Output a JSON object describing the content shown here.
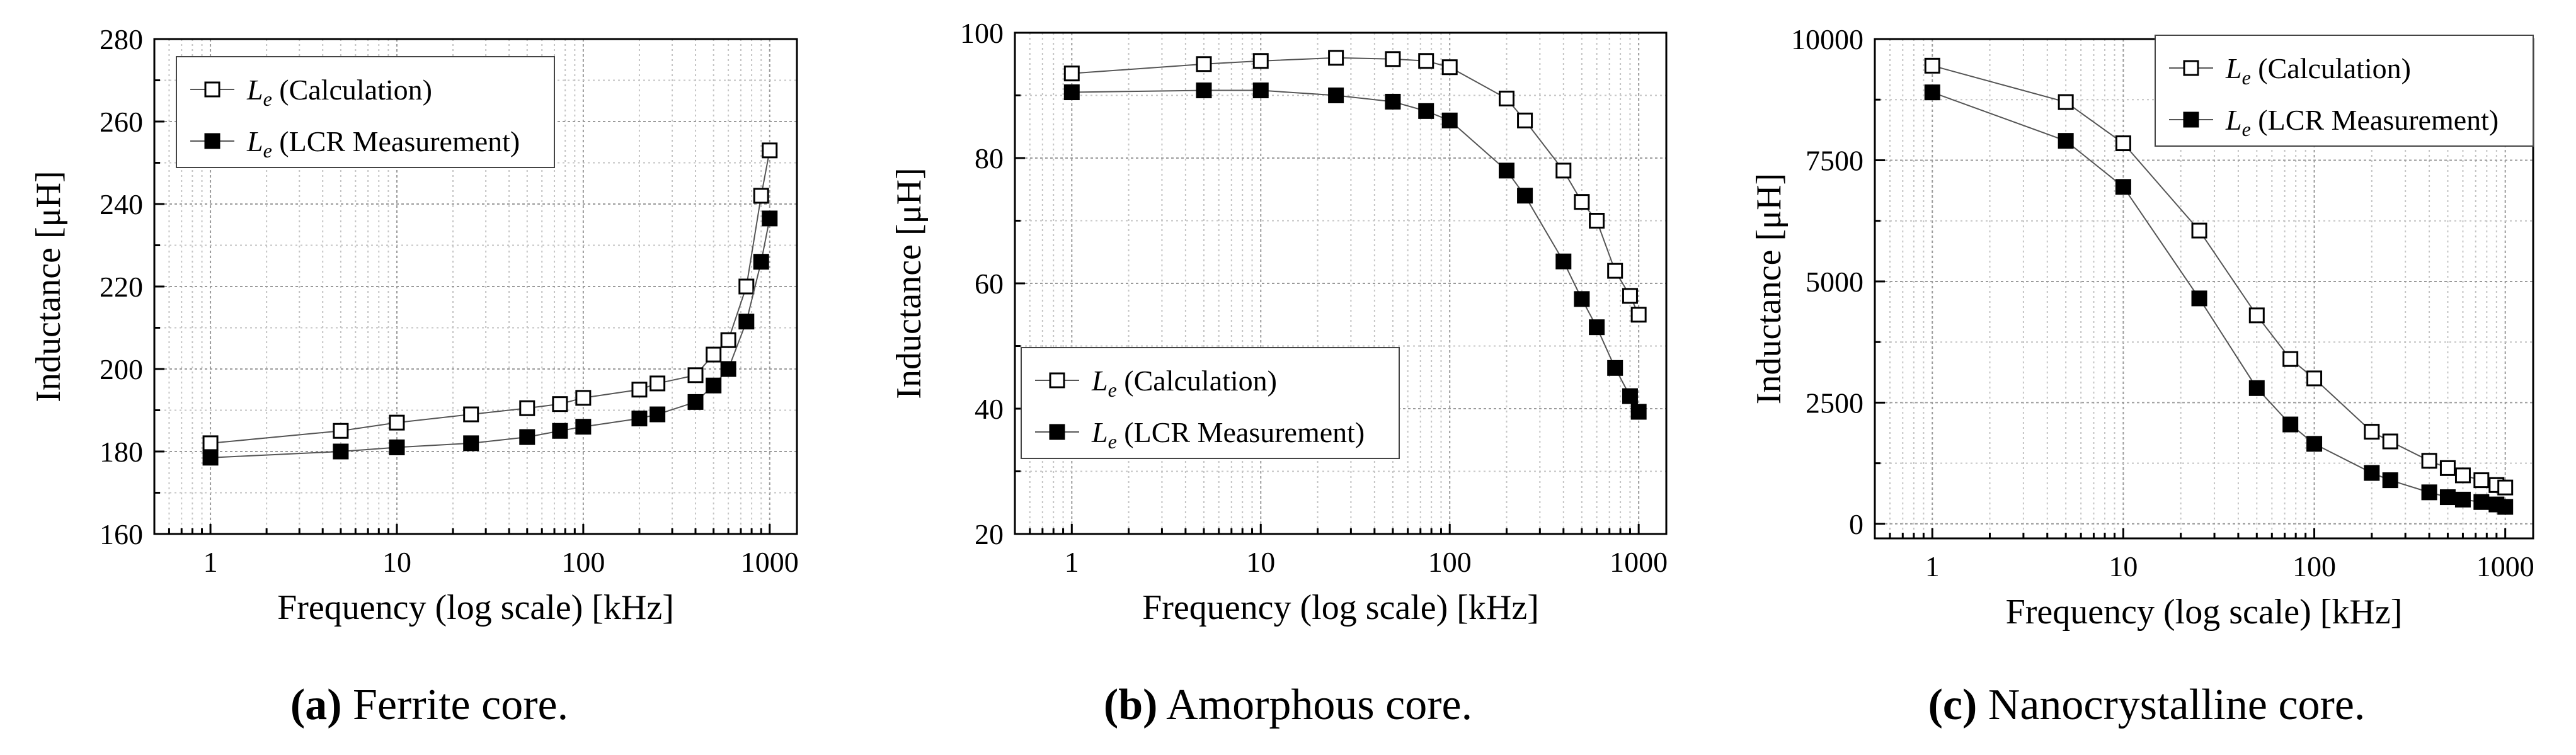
{
  "chart_data": [
    {
      "type": "line",
      "panel": "a",
      "caption_tag": "a",
      "caption_text": "Ferrite core.",
      "xlabel": "Frequency (log scale) [kHz]",
      "ylabel": "Inductance [μH]",
      "xscale": "log",
      "xlim": [
        0.5,
        1400
      ],
      "ylim": [
        160,
        280
      ],
      "yticks": [
        160,
        180,
        200,
        220,
        240,
        260,
        280
      ],
      "ytick_labels": [
        "160",
        "180",
        "200",
        "220",
        "240",
        "260",
        "280"
      ],
      "xticks": [
        1,
        10,
        100,
        1000
      ],
      "xtick_labels": [
        "1",
        "10",
        "100",
        "1000"
      ],
      "grid": true,
      "legend_position": "top-left",
      "x": [
        1,
        5,
        10,
        25,
        50,
        75,
        100,
        200,
        250,
        400,
        500,
        600,
        750,
        900,
        1000
      ],
      "series": [
        {
          "name": "L_e (Calculation)",
          "legend_sub": "e",
          "legend_text": "(Calculation)",
          "marker": "open-square",
          "values": [
            182,
            185,
            187,
            189,
            190.5,
            191.5,
            193,
            195,
            196.5,
            198.5,
            203.5,
            207,
            220,
            242,
            253
          ]
        },
        {
          "name": "L_e (LCR Measurement)",
          "legend_sub": "e",
          "legend_text": "(LCR Measurement)",
          "marker": "filled-square",
          "values": [
            178.5,
            180,
            181,
            182,
            183.5,
            185,
            186,
            188,
            189,
            192,
            196,
            200,
            211.5,
            226,
            236.5
          ]
        }
      ]
    },
    {
      "type": "line",
      "panel": "b",
      "caption_tag": "b",
      "caption_text": "Amorphous core.",
      "xlabel": "Frequency (log scale) [kHz]",
      "ylabel": "Inductance [μH]",
      "xscale": "log",
      "xlim": [
        0.5,
        1400
      ],
      "ylim": [
        20,
        100
      ],
      "yticks": [
        20,
        40,
        60,
        80,
        100
      ],
      "ytick_labels": [
        "20",
        "40",
        "60",
        "80",
        "100"
      ],
      "xticks": [
        1,
        10,
        100,
        1000
      ],
      "xtick_labels": [
        "1",
        "10",
        "100",
        "1000"
      ],
      "grid": true,
      "legend_position": "bottom-left",
      "x": [
        1,
        5,
        10,
        25,
        50,
        75,
        100,
        200,
        250,
        400,
        500,
        600,
        750,
        900,
        1000
      ],
      "series": [
        {
          "name": "L_e (Calculation)",
          "legend_sub": "e",
          "legend_text": "(Calculation)",
          "marker": "open-square",
          "values": [
            93.5,
            95,
            95.5,
            96,
            95.8,
            95.5,
            94.5,
            89.5,
            86,
            78,
            73,
            70,
            62,
            58,
            55
          ]
        },
        {
          "name": "L_e (LCR Measurement)",
          "legend_sub": "e",
          "legend_text": "(LCR Measurement)",
          "marker": "filled-square",
          "values": [
            90.5,
            90.8,
            90.8,
            90,
            89,
            87.5,
            86,
            78,
            74,
            63.5,
            57.5,
            53,
            46.5,
            42,
            39.5
          ]
        }
      ]
    },
    {
      "type": "line",
      "panel": "c",
      "caption_tag": "c",
      "caption_text": "Nanocrystalline core.",
      "xlabel": "Frequency (log scale) [kHz]",
      "ylabel": "Inductance [μH]",
      "xscale": "log",
      "xlim": [
        0.5,
        1400
      ],
      "ylim": [
        -300,
        10000
      ],
      "yticks": [
        0,
        2500,
        5000,
        7500,
        10000
      ],
      "ytick_labels": [
        "0",
        "2500",
        "5000",
        "7500",
        "10000"
      ],
      "xticks": [
        1,
        10,
        100,
        1000
      ],
      "xtick_labels": [
        "1",
        "10",
        "100",
        "1000"
      ],
      "grid": true,
      "legend_position": "top-right",
      "x": [
        1,
        5,
        10,
        25,
        50,
        75,
        100,
        200,
        250,
        400,
        500,
        600,
        750,
        900,
        1000
      ],
      "series": [
        {
          "name": "L_e (Calculation)",
          "legend_sub": "e",
          "legend_text": "(Calculation)",
          "marker": "open-square",
          "values": [
            9450,
            8700,
            7850,
            6050,
            4300,
            3400,
            3000,
            1900,
            1700,
            1300,
            1150,
            1000,
            900,
            800,
            750
          ]
        },
        {
          "name": "L_e (LCR Measurement)",
          "legend_sub": "e",
          "legend_text": "(LCR Measurement)",
          "marker": "filled-square",
          "values": [
            8900,
            7900,
            6950,
            4650,
            2800,
            2050,
            1650,
            1050,
            900,
            650,
            550,
            500,
            450,
            400,
            350
          ]
        }
      ]
    }
  ]
}
